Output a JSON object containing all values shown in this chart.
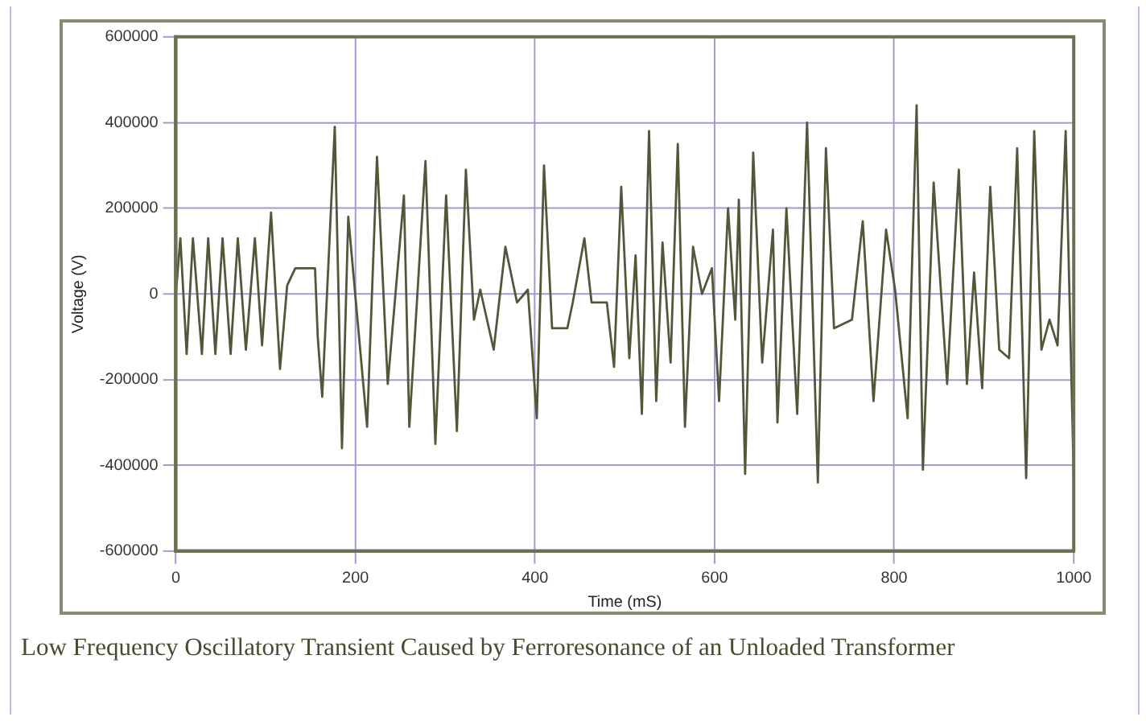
{
  "chart_data": {
    "type": "line",
    "xlabel": "Time (mS)",
    "ylabel": "Voltage (V)",
    "annotations": [
      "Low Frequency Oscillatory Transient Caused by Ferroresonance of an Unloaded Transformer"
    ],
    "xlim": [
      0,
      1000
    ],
    "xticks": [
      0,
      200,
      400,
      600,
      800,
      1000
    ],
    "ylim": [
      -600000,
      600000
    ],
    "yticks": [
      -600000,
      -400000,
      -200000,
      0,
      200000,
      400000,
      600000
    ],
    "grid": true,
    "legend": false,
    "marker": "none",
    "line_style": "solid",
    "series": [
      {
        "color": "#55553a",
        "x": [
          0,
          5,
          12,
          19,
          29,
          36,
          44,
          52,
          61,
          69,
          78,
          88,
          96,
          106,
          116,
          124,
          133,
          155,
          158,
          163,
          177,
          185,
          192,
          213,
          224,
          236,
          254,
          260,
          278,
          289,
          301,
          313,
          323,
          332,
          339,
          354,
          367,
          380,
          392,
          402,
          410,
          419,
          436,
          442,
          455,
          463,
          480,
          488,
          496,
          505,
          512,
          519,
          527,
          535,
          542,
          551,
          559,
          567,
          576,
          586,
          597,
          605,
          615,
          623,
          627,
          634,
          643,
          653,
          665,
          670,
          680,
          692,
          703,
          715,
          724,
          733,
          753,
          765,
          777,
          791,
          801,
          815,
          825,
          832,
          844,
          859,
          872,
          881,
          889,
          898,
          907,
          917,
          928,
          937,
          947,
          956,
          964,
          973,
          982,
          991,
          1000
        ],
        "values": [
          0,
          130000,
          -140000,
          130000,
          -140000,
          130000,
          -140000,
          130000,
          -140000,
          130000,
          -130000,
          130000,
          -120000,
          190000,
          -175000,
          20000,
          60000,
          60000,
          -100000,
          -240000,
          390000,
          -360000,
          180000,
          -310000,
          320000,
          -210000,
          230000,
          -310000,
          310000,
          -350000,
          230000,
          -320000,
          290000,
          -60000,
          10000,
          -130000,
          110000,
          -20000,
          10000,
          -290000,
          300000,
          -80000,
          -80000,
          -20000,
          130000,
          -20000,
          -20000,
          -170000,
          250000,
          -150000,
          90000,
          -280000,
          380000,
          -250000,
          120000,
          -160000,
          350000,
          -310000,
          110000,
          0,
          60000,
          -250000,
          200000,
          -60000,
          220000,
          -420000,
          330000,
          -160000,
          150000,
          -300000,
          200000,
          -280000,
          400000,
          -440000,
          340000,
          -80000,
          -60000,
          170000,
          -250000,
          150000,
          10000,
          -290000,
          440000,
          -410000,
          260000,
          -210000,
          290000,
          -210000,
          50000,
          -220000,
          250000,
          -130000,
          -150000,
          340000,
          -430000,
          380000,
          -130000,
          -60000,
          -120000,
          380000,
          -430000
        ]
      }
    ]
  }
}
